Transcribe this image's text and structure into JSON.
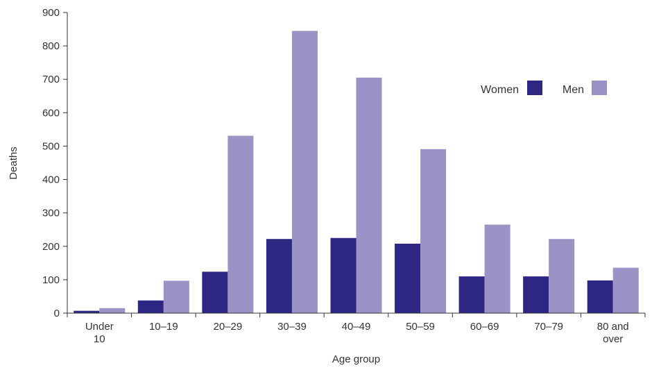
{
  "colors": {
    "women": "#2e2683",
    "men": "#9b93c6",
    "axis": "#333333",
    "text": "#333333"
  },
  "chart_data": {
    "type": "bar",
    "title": "",
    "xlabel": "Age group",
    "ylabel": "Deaths",
    "categories": [
      [
        "Under",
        "10"
      ],
      [
        "10–19"
      ],
      [
        "20–29"
      ],
      [
        "30–39"
      ],
      [
        "40–49"
      ],
      [
        "50–59"
      ],
      [
        "60–69"
      ],
      [
        "70–79"
      ],
      [
        "80 and",
        "over"
      ]
    ],
    "series": [
      {
        "name": "Women",
        "color": "#2e2683",
        "values": [
          7,
          38,
          124,
          222,
          225,
          208,
          110,
          110,
          98
        ]
      },
      {
        "name": "Men",
        "color": "#9b93c6",
        "values": [
          15,
          97,
          531,
          845,
          705,
          491,
          265,
          222,
          136
        ]
      }
    ],
    "ylim": [
      0,
      900
    ],
    "yticks": [
      0,
      100,
      200,
      300,
      400,
      500,
      600,
      700,
      800,
      900
    ],
    "grid": false,
    "legend_position": "top-right"
  }
}
